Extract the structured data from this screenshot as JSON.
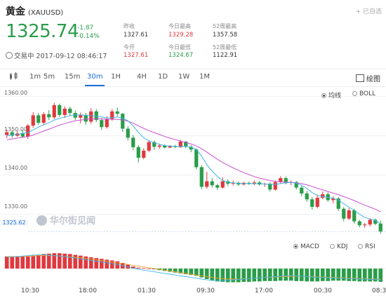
{
  "header": {
    "title": "黄金",
    "code": "(XAUUSD)",
    "added_label": "已自选",
    "price": "1325.74",
    "change": "-1.87",
    "change_pct": "-0.14%",
    "status": "交易中 2017-09-12 08:46:17"
  },
  "stats": {
    "prev_close_label": "昨收",
    "prev_close": "1327.61",
    "open_label": "今开",
    "open": "1327.61",
    "high_label": "今日最高",
    "high": "1329.28",
    "low_label": "今日最低",
    "low": "1324.67",
    "w52_high_label": "52周最高",
    "w52_high": "1357.58",
    "w52_low_label": "52周最低",
    "w52_low": "1122.91"
  },
  "toolbar": {
    "tabs": [
      "1m",
      "5m",
      "15m",
      "30m",
      "1H",
      "4H",
      "1D",
      "1W",
      "1M"
    ],
    "active_tab": "30m",
    "draw_label": "绘图"
  },
  "main_chart": {
    "y_labels": [
      "1360.00",
      "1350.00",
      "1340.00",
      "1330.00"
    ],
    "current_price_label": "1325.62",
    "overlay_options": [
      "均线",
      "BOLL"
    ],
    "active_overlay": "均线"
  },
  "sub_chart": {
    "options": [
      "MACD",
      "KDJ",
      "RSI"
    ],
    "active_option": "MACD"
  },
  "watermark": "华尔街见闻",
  "x_labels": [
    "10:30",
    "18:00",
    "01:30",
    "09:30",
    "17:00",
    "00:30",
    "08:3"
  ],
  "colors": {
    "up": "#e0393e",
    "down": "#2a9d4a",
    "accent": "#1a6fd6"
  },
  "chart_data": {
    "type": "candlestick",
    "ylim": [
      1326,
      1361
    ],
    "candles": [
      [
        1350.2,
        1351.6,
        1349.4,
        1350.9
      ],
      [
        1350.9,
        1351.4,
        1349.5,
        1350.0
      ],
      [
        1350.0,
        1351.2,
        1349.7,
        1350.6
      ],
      [
        1350.6,
        1351.5,
        1349.6,
        1349.8
      ],
      [
        1349.8,
        1353.0,
        1349.2,
        1352.6
      ],
      [
        1352.6,
        1356.0,
        1352.0,
        1355.2
      ],
      [
        1355.2,
        1355.8,
        1352.8,
        1353.3
      ],
      [
        1353.3,
        1356.0,
        1352.9,
        1355.5
      ],
      [
        1355.5,
        1356.5,
        1354.0,
        1354.7
      ],
      [
        1354.7,
        1358.4,
        1354.2,
        1357.8
      ],
      [
        1357.8,
        1358.2,
        1354.8,
        1355.3
      ],
      [
        1355.3,
        1357.5,
        1354.5,
        1356.9
      ],
      [
        1356.9,
        1357.4,
        1355.2,
        1355.8
      ],
      [
        1355.8,
        1356.4,
        1354.0,
        1354.6
      ],
      [
        1354.6,
        1355.9,
        1353.2,
        1355.3
      ],
      [
        1355.3,
        1355.8,
        1352.8,
        1353.6
      ],
      [
        1353.6,
        1357.0,
        1353.0,
        1356.2
      ],
      [
        1356.2,
        1356.8,
        1353.5,
        1354.0
      ],
      [
        1354.0,
        1354.5,
        1351.5,
        1352.2
      ],
      [
        1352.2,
        1355.0,
        1351.8,
        1354.3
      ],
      [
        1354.3,
        1356.8,
        1353.8,
        1356.2
      ],
      [
        1356.2,
        1357.2,
        1355.0,
        1355.6
      ],
      [
        1355.6,
        1355.8,
        1351.0,
        1351.8
      ],
      [
        1351.8,
        1352.4,
        1348.8,
        1349.5
      ],
      [
        1349.5,
        1350.2,
        1346.3,
        1347.1
      ],
      [
        1347.1,
        1347.6,
        1343.2,
        1344.4
      ],
      [
        1344.4,
        1346.8,
        1344.0,
        1346.2
      ],
      [
        1346.2,
        1348.8,
        1345.8,
        1348.4
      ],
      [
        1348.4,
        1348.8,
        1346.4,
        1347.2
      ],
      [
        1347.2,
        1348.0,
        1346.7,
        1347.5
      ],
      [
        1347.5,
        1347.8,
        1346.8,
        1347.0
      ],
      [
        1347.0,
        1347.6,
        1346.8,
        1347.3
      ],
      [
        1347.3,
        1347.7,
        1346.9,
        1347.1
      ],
      [
        1347.1,
        1349.0,
        1346.9,
        1348.5
      ],
      [
        1348.5,
        1348.7,
        1346.8,
        1347.2
      ],
      [
        1347.2,
        1347.6,
        1345.8,
        1346.5
      ],
      [
        1346.5,
        1346.8,
        1341.5,
        1342.0
      ],
      [
        1342.0,
        1342.5,
        1336.4,
        1337.0
      ],
      [
        1337.0,
        1340.8,
        1336.5,
        1338.4
      ],
      [
        1338.4,
        1339.2,
        1336.8,
        1337.4
      ],
      [
        1337.4,
        1337.8,
        1336.2,
        1336.8
      ],
      [
        1336.8,
        1339.4,
        1336.5,
        1338.4
      ],
      [
        1338.4,
        1338.9,
        1337.2,
        1337.8
      ],
      [
        1337.8,
        1338.6,
        1337.3,
        1338.0
      ],
      [
        1338.0,
        1338.4,
        1337.2,
        1337.6
      ],
      [
        1337.6,
        1338.3,
        1337.3,
        1338.0
      ],
      [
        1338.0,
        1338.3,
        1337.5,
        1337.7
      ],
      [
        1337.7,
        1338.6,
        1337.4,
        1338.1
      ],
      [
        1338.1,
        1338.5,
        1337.3,
        1337.6
      ],
      [
        1337.6,
        1338.0,
        1337.0,
        1337.8
      ],
      [
        1337.8,
        1338.1,
        1335.8,
        1336.3
      ],
      [
        1336.3,
        1338.6,
        1336.0,
        1338.2
      ],
      [
        1338.2,
        1339.7,
        1337.8,
        1339.2
      ],
      [
        1339.2,
        1339.6,
        1337.6,
        1338.0
      ],
      [
        1338.0,
        1338.6,
        1337.4,
        1338.2
      ],
      [
        1338.2,
        1338.5,
        1336.3,
        1336.8
      ],
      [
        1336.8,
        1337.2,
        1334.6,
        1335.3
      ],
      [
        1335.3,
        1335.9,
        1333.2,
        1333.8
      ],
      [
        1333.8,
        1334.4,
        1331.2,
        1331.9
      ],
      [
        1331.9,
        1335.0,
        1331.5,
        1334.2
      ],
      [
        1334.2,
        1335.8,
        1333.8,
        1335.1
      ],
      [
        1335.1,
        1335.6,
        1333.2,
        1333.6
      ],
      [
        1333.6,
        1334.6,
        1332.8,
        1334.0
      ],
      [
        1334.0,
        1334.4,
        1330.8,
        1331.4
      ],
      [
        1331.4,
        1331.8,
        1328.2,
        1328.9
      ],
      [
        1328.9,
        1331.6,
        1328.5,
        1331.0
      ],
      [
        1331.0,
        1331.4,
        1327.6,
        1328.2
      ],
      [
        1328.2,
        1328.6,
        1326.7,
        1327.2
      ],
      [
        1327.2,
        1327.8,
        1326.6,
        1327.4
      ],
      [
        1327.4,
        1329.0,
        1326.9,
        1328.6
      ],
      [
        1328.6,
        1328.9,
        1327.2,
        1327.6
      ],
      [
        1327.6,
        1328.4,
        1325.0,
        1325.6
      ]
    ],
    "ma_fast": [
      1350.0,
      1350.2,
      1350.4,
      1350.6,
      1350.8,
      1351.5,
      1352.2,
      1352.8,
      1353.3,
      1354.0,
      1354.4,
      1354.8,
      1355.1,
      1355.3,
      1355.3,
      1355.2,
      1355.1,
      1355.0,
      1354.8,
      1354.5,
      1354.6,
      1354.8,
      1354.5,
      1353.8,
      1352.5,
      1350.8,
      1349.5,
      1348.7,
      1348.2,
      1347.8,
      1347.5,
      1347.4,
      1347.3,
      1347.3,
      1347.3,
      1347.1,
      1346.5,
      1344.8,
      1342.6,
      1341.0,
      1339.6,
      1338.6,
      1338.2,
      1338.0,
      1337.9,
      1337.8,
      1337.8,
      1337.8,
      1337.8,
      1337.7,
      1337.6,
      1337.6,
      1337.8,
      1338.0,
      1338.1,
      1337.9,
      1337.4,
      1336.6,
      1335.5,
      1334.8,
      1334.5,
      1334.3,
      1334.1,
      1333.6,
      1332.7,
      1331.8,
      1331.0,
      1330.0,
      1329.2,
      1328.8,
      1328.4,
      1327.6
    ],
    "ma_slow": [
      1349.0,
      1349.2,
      1349.4,
      1349.6,
      1349.8,
      1350.2,
      1350.7,
      1351.2,
      1351.7,
      1352.2,
      1352.7,
      1353.1,
      1353.5,
      1353.8,
      1354.0,
      1354.2,
      1354.3,
      1354.3,
      1354.3,
      1354.2,
      1354.2,
      1354.2,
      1354.0,
      1353.7,
      1353.2,
      1352.5,
      1351.9,
      1351.3,
      1350.8,
      1350.3,
      1349.8,
      1349.4,
      1349.0,
      1348.6,
      1348.3,
      1347.9,
      1347.4,
      1346.7,
      1345.8,
      1344.9,
      1344.0,
      1343.2,
      1342.5,
      1341.8,
      1341.2,
      1340.6,
      1340.1,
      1339.6,
      1339.2,
      1338.9,
      1338.6,
      1338.4,
      1338.3,
      1338.2,
      1338.1,
      1338.0,
      1337.8,
      1337.5,
      1337.1,
      1336.6,
      1336.2,
      1335.8,
      1335.4,
      1335.0,
      1334.5,
      1334.0,
      1333.5,
      1332.9,
      1332.3,
      1331.8,
      1331.3,
      1330.6
    ],
    "macd_hist": [
      3,
      3,
      3,
      3,
      3,
      3.2,
      3.4,
      3.6,
      3.7,
      3.8,
      3.8,
      3.7,
      3.6,
      3.4,
      3.2,
      3.0,
      2.8,
      2.6,
      2.4,
      2.2,
      2.0,
      1.8,
      1.4,
      1.0,
      0.5,
      0.2,
      0.1,
      0,
      -0.2,
      -0.4,
      -0.6,
      -0.8,
      -1.0,
      -1.2,
      -1.4,
      -1.6,
      -1.8,
      -2.2,
      -2.6,
      -3.0,
      -3.2,
      -3.3,
      -3.4,
      -3.4,
      -3.4,
      -3.3,
      -3.3,
      -3.2,
      -3.2,
      -3.1,
      -3.1,
      -3.1,
      -3.0,
      -3.0,
      -3.0,
      -3.1,
      -3.1,
      -3.2,
      -3.2,
      -3.2,
      -3.1,
      -3.1,
      -3.0,
      -3.0,
      -3.0,
      -3.1,
      -3.1,
      -3.2,
      -3.2,
      -3.2,
      -3.2,
      -3.3
    ],
    "macd_dif": [
      2.8,
      2.9,
      3.0,
      3.1,
      3.2,
      3.3,
      3.4,
      3.4,
      3.3,
      3.2,
      3.1,
      3.0,
      2.8,
      2.6,
      2.4,
      2.2,
      2.0,
      1.8,
      1.6,
      1.4,
      1.2,
      1.0,
      0.7,
      0.4,
      0.1,
      -0.2,
      -0.4,
      -0.6,
      -0.8,
      -1.0,
      -1.2,
      -1.4,
      -1.6,
      -1.8,
      -2.0,
      -2.2,
      -2.4,
      -2.6,
      -2.8,
      -2.9,
      -3.0,
      -3.0,
      -2.9,
      -2.8,
      -2.7,
      -2.6,
      -2.5,
      -2.4,
      -2.3,
      -2.2,
      -2.1,
      -2.0,
      -1.9,
      -1.8,
      -1.7,
      -1.8,
      -1.9,
      -2.0,
      -2.1,
      -2.2,
      -2.2,
      -2.3,
      -2.3,
      -2.4,
      -2.4,
      -2.5,
      -2.5,
      -2.6,
      -2.6,
      -2.7,
      -2.7,
      -2.8
    ],
    "macd_dea": [
      3.0,
      3.0,
      3.0,
      3.0,
      3.1,
      3.1,
      3.2,
      3.2,
      3.2,
      3.2,
      3.1,
      3.0,
      2.9,
      2.8,
      2.7,
      2.5,
      2.4,
      2.2,
      2.0,
      1.8,
      1.6,
      1.4,
      1.2,
      1.0,
      0.8,
      0.6,
      0.4,
      0.2,
      0.0,
      -0.2,
      -0.4,
      -0.6,
      -0.8,
      -1.0,
      -1.2,
      -1.4,
      -1.6,
      -1.8,
      -2.0,
      -2.2,
      -2.4,
      -2.5,
      -2.6,
      -2.6,
      -2.6,
      -2.5,
      -2.5,
      -2.4,
      -2.3,
      -2.2,
      -2.2,
      -2.1,
      -2.0,
      -2.0,
      -1.9,
      -1.9,
      -1.9,
      -2.0,
      -2.0,
      -2.1,
      -2.1,
      -2.2,
      -2.2,
      -2.3,
      -2.3,
      -2.4,
      -2.4,
      -2.5,
      -2.5,
      -2.6,
      -2.6,
      -2.7
    ],
    "macd_range": [
      -4,
      4
    ]
  }
}
